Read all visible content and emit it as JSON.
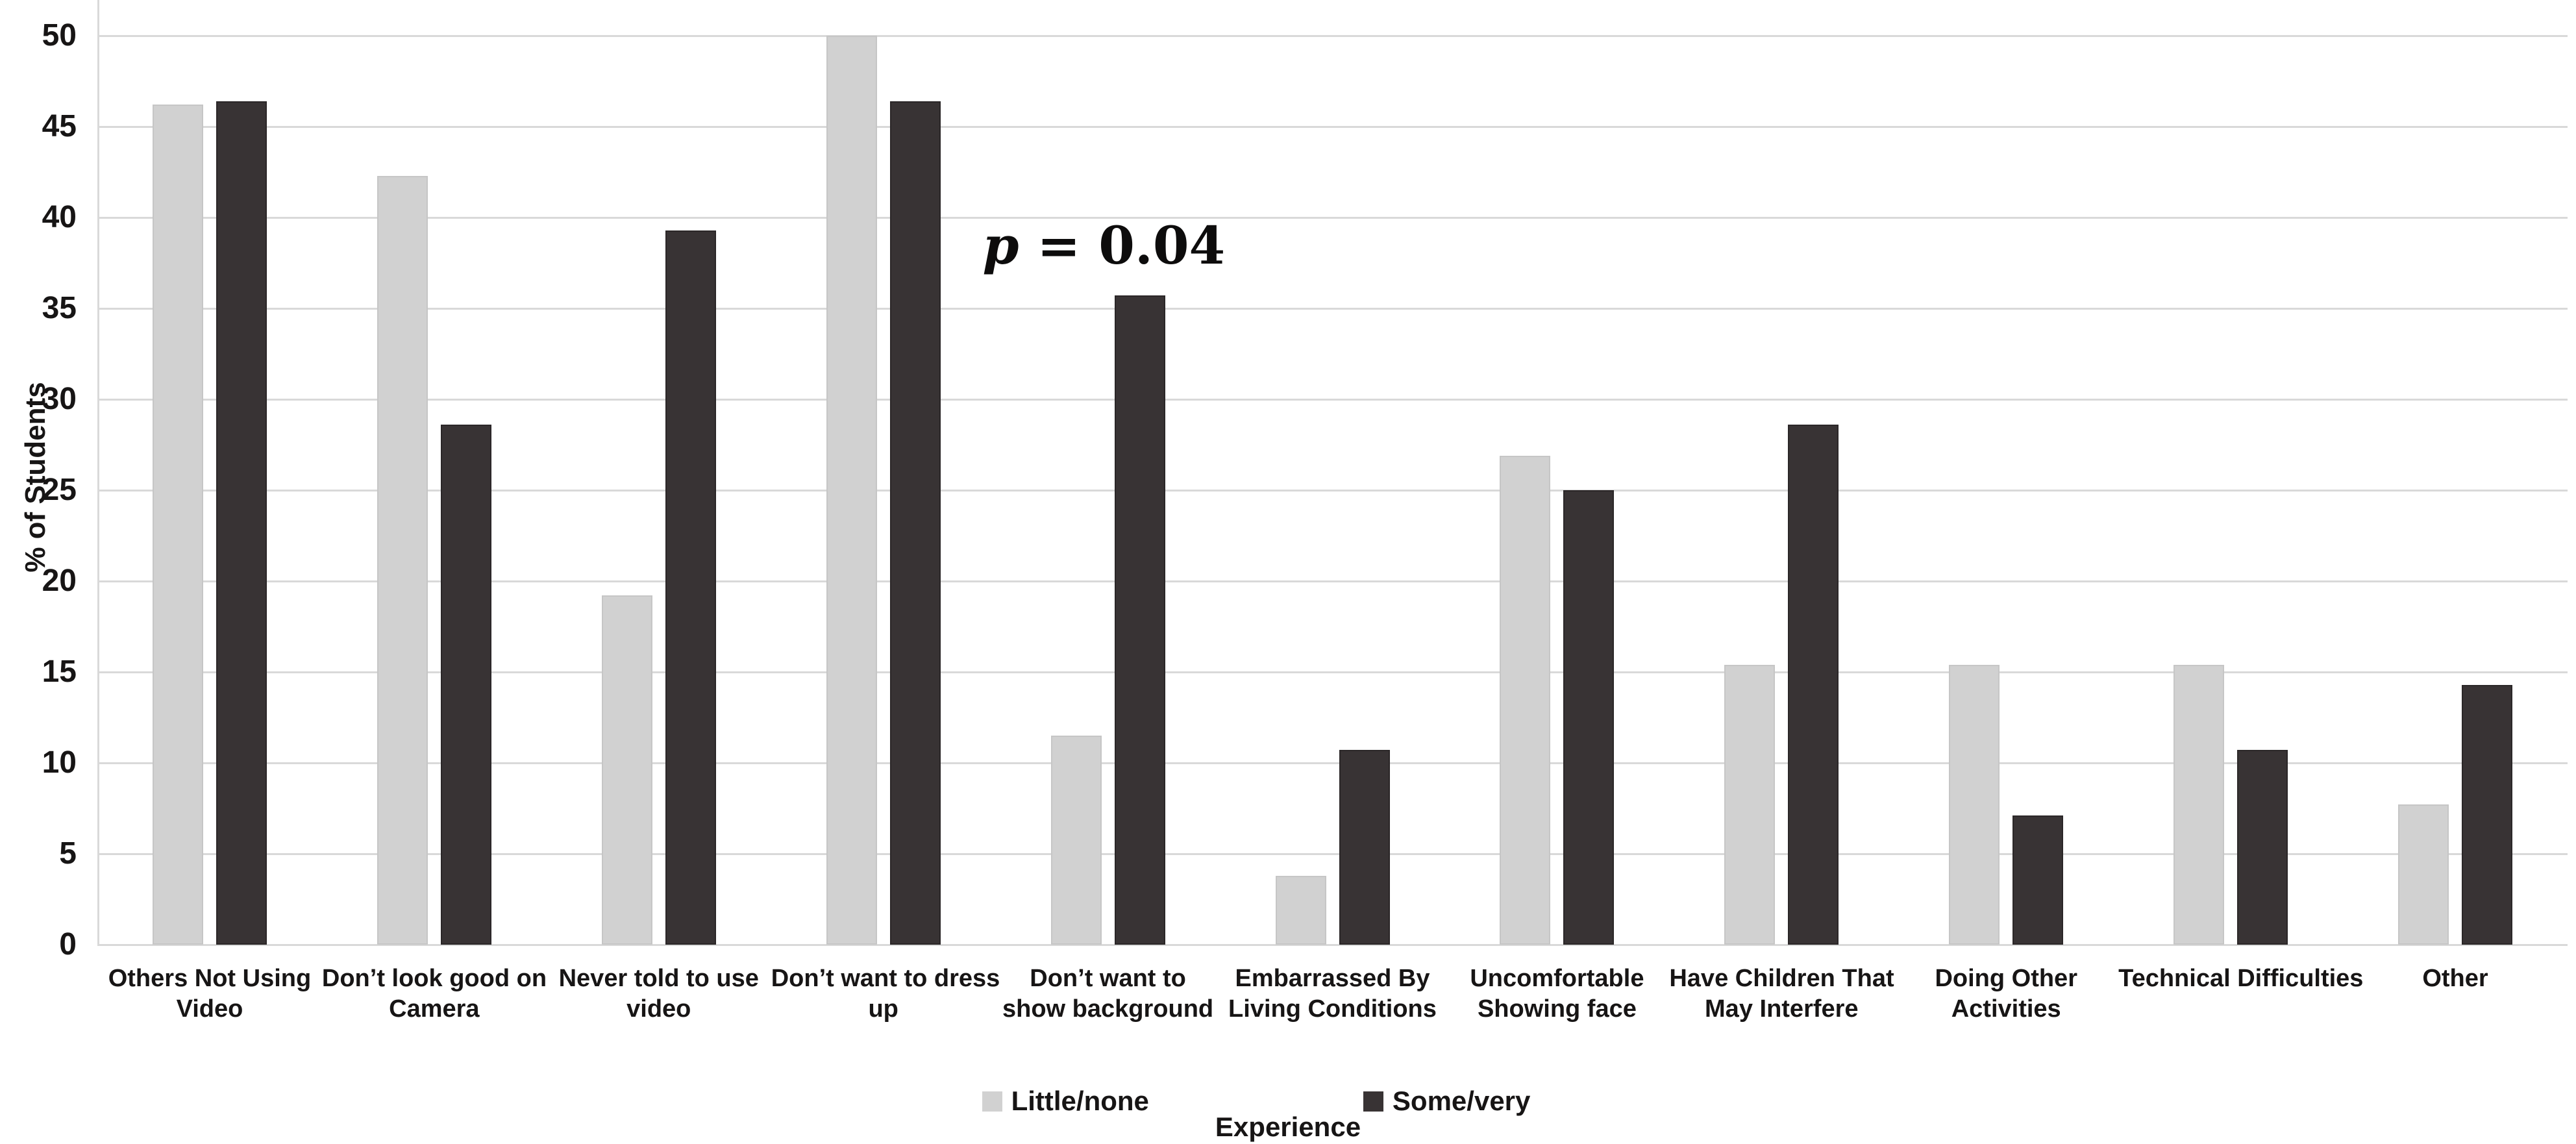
{
  "chart_data": {
    "type": "bar",
    "title": "",
    "categories": [
      "Others Not Using Video",
      "Don’t look good on Camera",
      "Never told to use video",
      "Don’t want to dress up",
      "Don’t want to show background",
      "Embarrassed By Living Conditions",
      "Uncomfortable Showing face",
      "Have Children That May Interfere",
      "Doing Other Activities",
      "Technical Difficulties",
      "Other"
    ],
    "category_lines": [
      [
        "Others Not Using",
        "Video"
      ],
      [
        "Don’t look good on",
        "Camera"
      ],
      [
        "Never told to use",
        "video"
      ],
      [
        "Don’t want to dress",
        "up"
      ],
      [
        "Don’t want to",
        "show background"
      ],
      [
        "Embarrassed By",
        "Living Conditions"
      ],
      [
        "Uncomfortable",
        "Showing face"
      ],
      [
        "Have Children That",
        "May Interfere"
      ],
      [
        "Doing Other",
        "Activities"
      ],
      [
        "Technical Difficulties"
      ],
      [
        "Other"
      ]
    ],
    "series": [
      {
        "name": "Little/none",
        "color": "#d1d1d1",
        "values": [
          46.2,
          42.3,
          19.2,
          50.0,
          11.5,
          3.8,
          26.9,
          15.4,
          15.4,
          15.4,
          7.7
        ]
      },
      {
        "name": "Some/very",
        "color": "#383334",
        "values": [
          46.4,
          28.6,
          39.3,
          46.4,
          35.7,
          10.7,
          25.0,
          28.6,
          7.1,
          10.7,
          14.3
        ]
      }
    ],
    "ylabel": "% of Students",
    "xlabel": "Experience",
    "ylim": [
      0,
      50
    ],
    "yticks": [
      0,
      5,
      10,
      15,
      20,
      25,
      30,
      35,
      40,
      45,
      50
    ],
    "grid": true,
    "legend_position": "bottom",
    "annotation": {
      "variable": "p",
      "equals_value": " = 0.04",
      "full_text": "p = 0.04",
      "category_index": 4
    },
    "colors": {
      "background": "#ffffff",
      "gridline": "#d9d9d9",
      "text": "#171515",
      "series_light": "#d1d1d1",
      "series_dark": "#383334"
    }
  }
}
